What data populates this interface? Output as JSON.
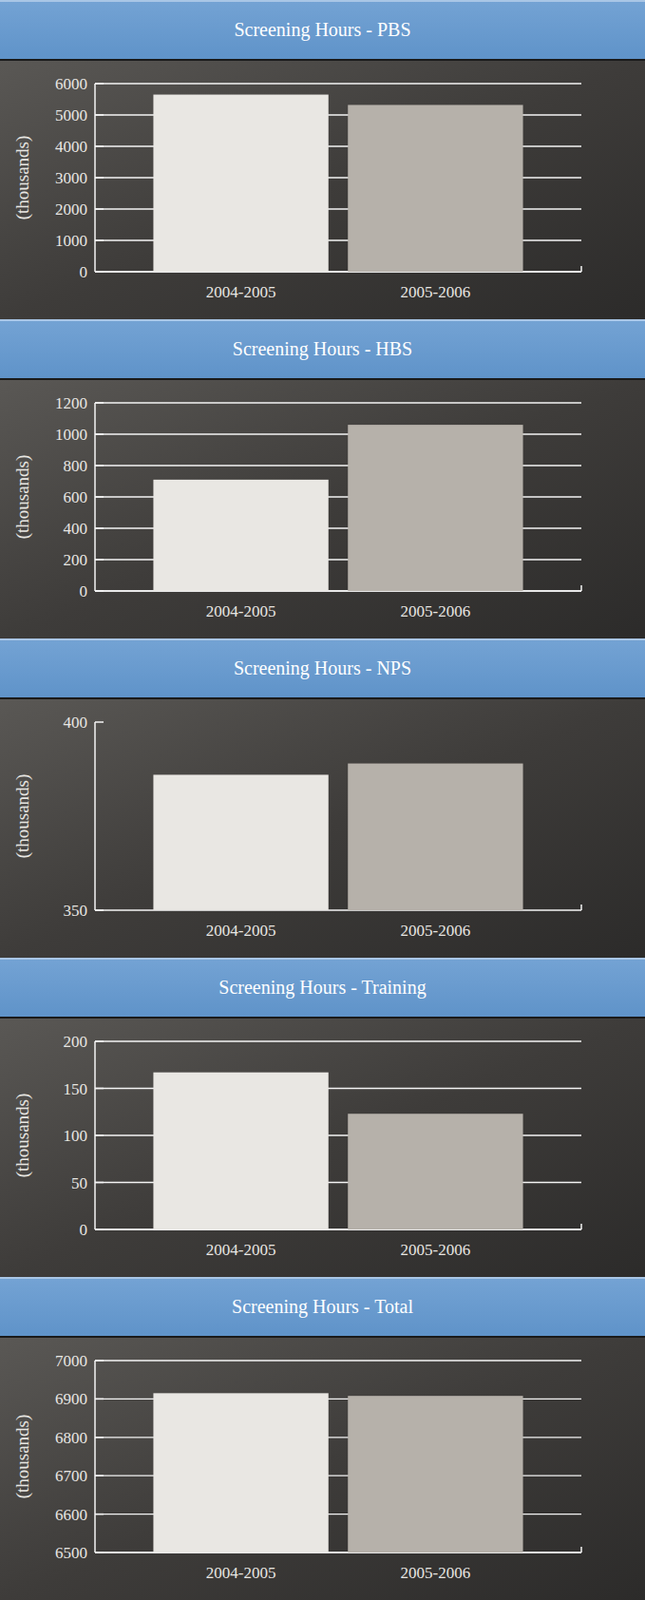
{
  "chart_data": [
    {
      "type": "bar",
      "title": "Screening Hours - PBS",
      "y_label": "(thousands)",
      "categories": [
        "2004-2005",
        "2005-2006"
      ],
      "values": [
        5650,
        5320
      ],
      "colors": [
        "#e9e7e3",
        "#b6b1aa"
      ],
      "ylim": [
        0,
        6000
      ],
      "yticks": [
        0,
        1000,
        2000,
        3000,
        4000,
        5000,
        6000
      ],
      "grid": true
    },
    {
      "type": "bar",
      "title": "Screening Hours - HBS",
      "y_label": "(thousands)",
      "categories": [
        "2004-2005",
        "2005-2006"
      ],
      "values": [
        710,
        1060
      ],
      "colors": [
        "#e9e7e3",
        "#b6b1aa"
      ],
      "ylim": [
        0,
        1200
      ],
      "yticks": [
        0,
        200,
        400,
        600,
        800,
        1000,
        1200
      ],
      "grid": true
    },
    {
      "type": "bar",
      "title": "Screening Hours - NPS",
      "y_label": "(thousands)",
      "categories": [
        "2004-2005",
        "2005-2006"
      ],
      "values": [
        386,
        389
      ],
      "colors": [
        "#e9e7e3",
        "#b6b1aa"
      ],
      "ylim": [
        350,
        400
      ],
      "yticks": [
        350,
        400
      ],
      "grid": false
    },
    {
      "type": "bar",
      "title": "Screening Hours - Training",
      "y_label": "(thousands)",
      "categories": [
        "2004-2005",
        "2005-2006"
      ],
      "values": [
        167,
        123
      ],
      "colors": [
        "#e9e7e3",
        "#b6b1aa"
      ],
      "ylim": [
        0,
        200
      ],
      "yticks": [
        0,
        50,
        100,
        150,
        200
      ],
      "grid": true
    },
    {
      "type": "bar",
      "title": "Screening Hours - Total",
      "y_label": "(thousands)",
      "categories": [
        "2004-2005",
        "2005-2006"
      ],
      "values": [
        6915,
        6908
      ],
      "colors": [
        "#e9e7e3",
        "#b6b1aa"
      ],
      "ylim": [
        6500,
        7000
      ],
      "yticks": [
        6500,
        6600,
        6700,
        6800,
        6900,
        7000
      ],
      "grid": true
    }
  ]
}
